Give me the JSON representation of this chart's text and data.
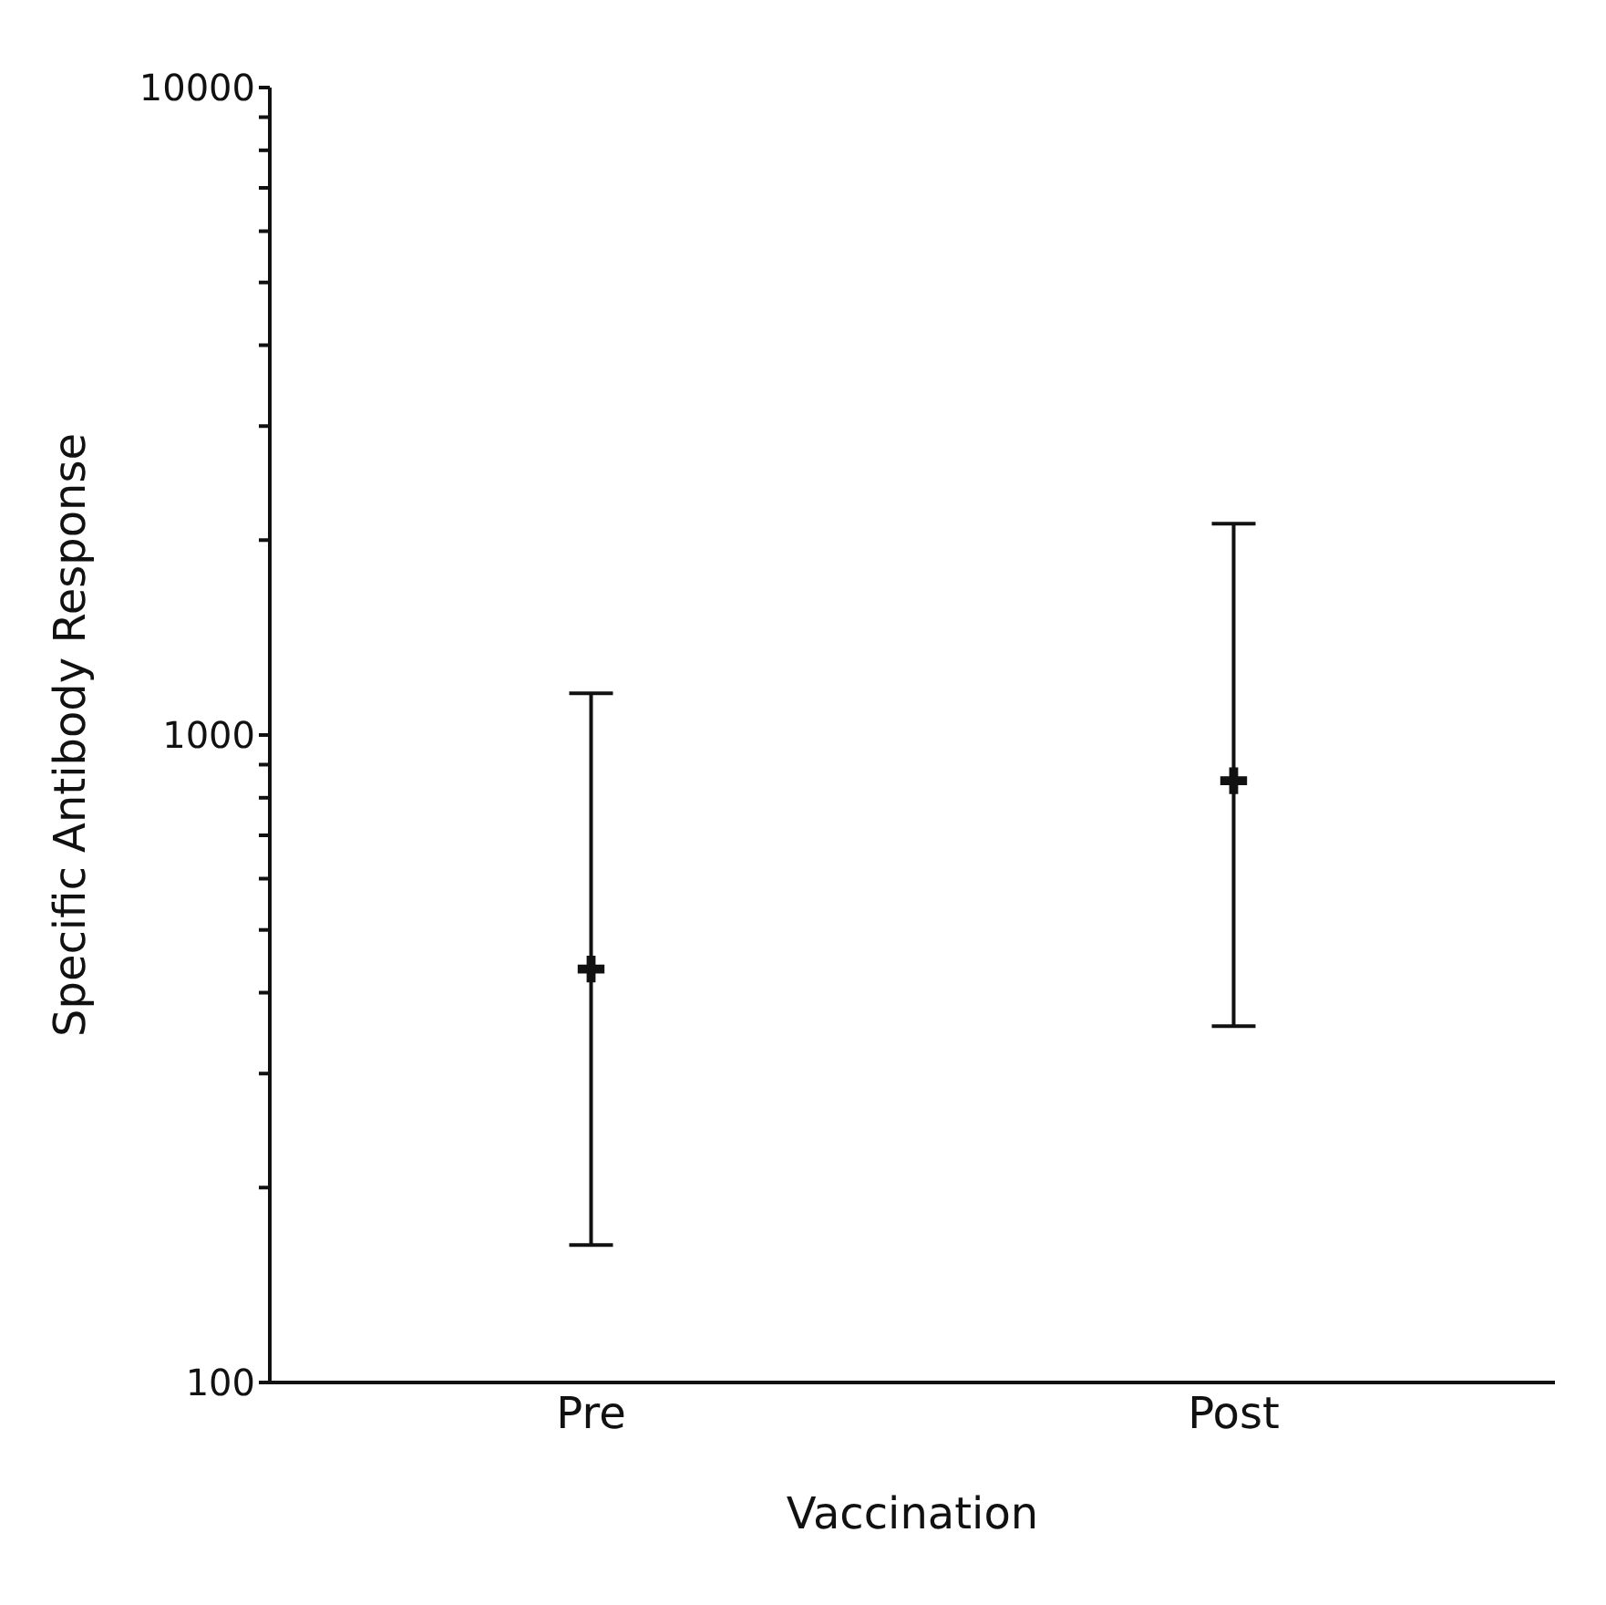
{
  "chart_data": {
    "type": "scatter",
    "xlabel": "Vaccination",
    "ylabel": "Specific Antibody Response",
    "categories": [
      "Pre",
      "Post"
    ],
    "values": [
      435,
      850
    ],
    "errors": [
      [
        163,
        1160
      ],
      [
        355,
        2120
      ]
    ],
    "color": "#111111",
    "marker": "cross",
    "log": "y",
    "ylim": [
      100,
      10000
    ],
    "yticks": [
      100,
      {
        "value": 200,
        "label": null
      },
      {
        "value": 300,
        "label": null
      },
      {
        "value": 400,
        "label": null
      },
      {
        "value": 500,
        "label": null
      },
      {
        "value": 600,
        "label": null
      },
      {
        "value": 700,
        "label": null
      },
      {
        "value": 800,
        "label": null
      },
      {
        "value": 900,
        "label": null
      },
      1000,
      {
        "value": 2000,
        "label": null
      },
      {
        "value": 3000,
        "label": null
      },
      {
        "value": 4000,
        "label": null
      },
      {
        "value": 5000,
        "label": null
      },
      {
        "value": 6000,
        "label": null
      },
      {
        "value": 7000,
        "label": null
      },
      {
        "value": 8000,
        "label": null
      },
      {
        "value": 9000,
        "label": null
      },
      10000
    ],
    "grid": false
  }
}
